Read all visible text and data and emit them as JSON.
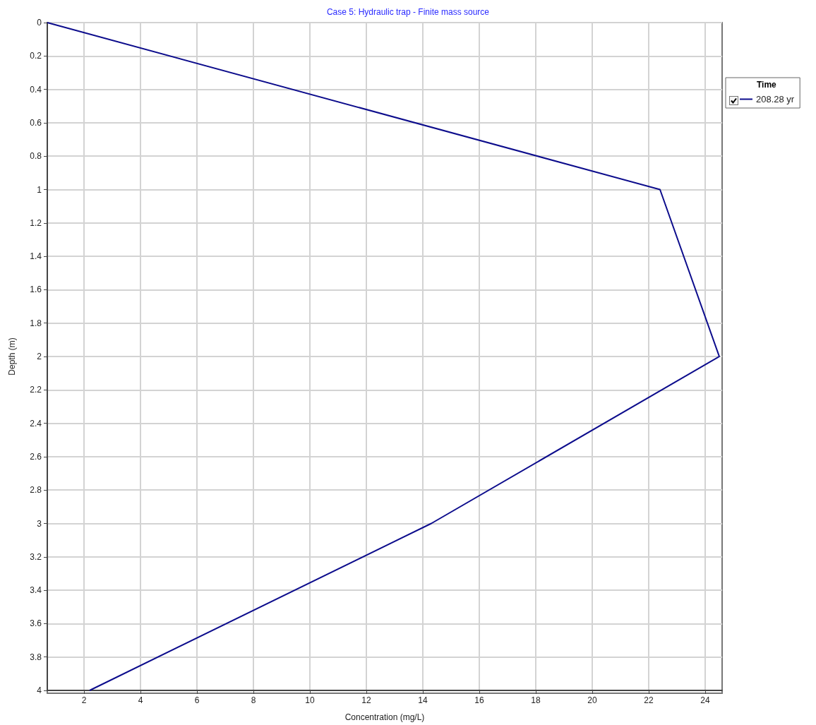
{
  "chart_data": {
    "type": "line",
    "title": "Case 5: Hydraulic trap - Finite mass source",
    "xlabel": "Concentration (mg/L)",
    "ylabel": "Depth (m)",
    "legend_title": "Time",
    "x": [
      0.7,
      22.4,
      24.5,
      14.3,
      2.2
    ],
    "series": [
      {
        "name": "208.28 yr",
        "color": "#0c0c8c",
        "values": [
          0,
          1,
          2,
          3,
          4
        ]
      }
    ],
    "xlim": [
      0.7,
      24.6
    ],
    "xticks": [
      2,
      4,
      6,
      8,
      10,
      12,
      14,
      16,
      18,
      20,
      22,
      24
    ],
    "ylim": [
      4,
      0
    ],
    "yticks": [
      0,
      0.2,
      0.4,
      0.6,
      0.8,
      1,
      1.2,
      1.4,
      1.6,
      1.8,
      2,
      2.2,
      2.4,
      2.6,
      2.8,
      3,
      3.2,
      3.4,
      3.6,
      3.8,
      4
    ],
    "grid": true,
    "legend": "top right",
    "marker": "none",
    "line_style": "solid"
  }
}
